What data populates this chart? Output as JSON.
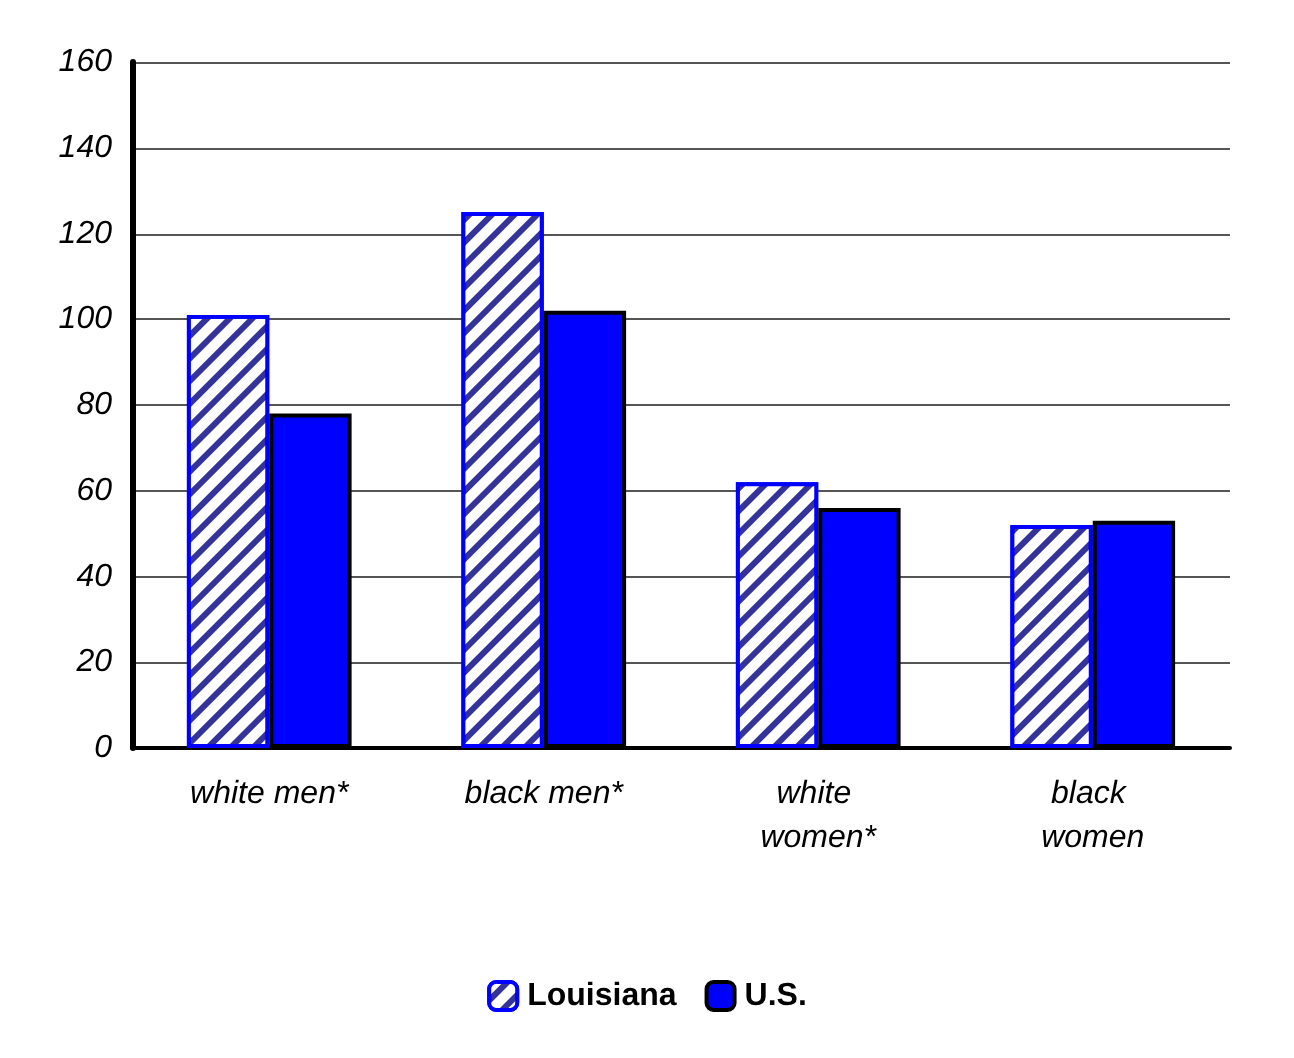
{
  "chart_data": {
    "type": "bar",
    "categories": [
      "white men*",
      "black men*",
      "white women*",
      "black women"
    ],
    "series": [
      {
        "name": "Louisiana",
        "color": "#333399",
        "values": [
          101,
          125,
          62,
          52
        ]
      },
      {
        "name": "U.S.",
        "color": "#0000ff",
        "values": [
          78,
          102,
          56,
          53
        ]
      }
    ],
    "ylim": [
      0,
      160
    ],
    "yticks": [
      0,
      20,
      40,
      60,
      80,
      100,
      120,
      140,
      160
    ],
    "grid": "y",
    "legend": "bottom"
  }
}
